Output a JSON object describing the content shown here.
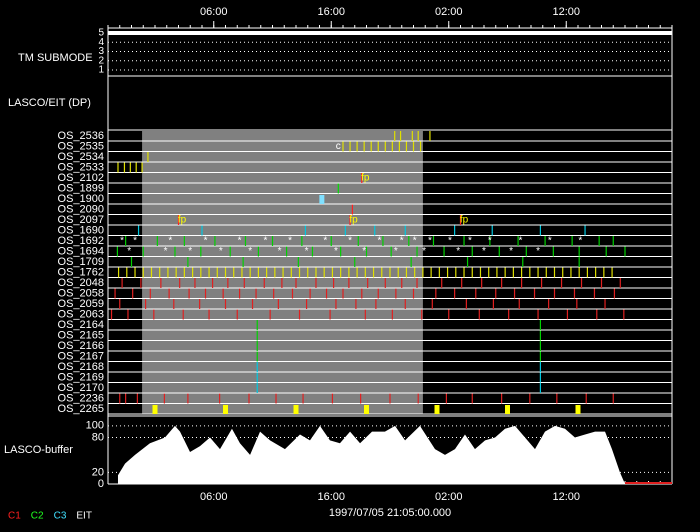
{
  "chart_data": {
    "type": "timeline",
    "xlim": [
      0,
      48
    ],
    "xticks": [
      {
        "value": 9,
        "label": "06:00"
      },
      {
        "value": 19,
        "label": "16:00"
      },
      {
        "value": 29,
        "label": "02:00"
      },
      {
        "value": 39,
        "label": "12:00"
      }
    ],
    "date_label": "1997/07/05 21:05:00.000",
    "submode": {
      "label": "TM SUBMODE",
      "levels": [
        5,
        4,
        3,
        2,
        1
      ],
      "value": 5
    },
    "section_label": "LASCO/EIT (DP)",
    "shade": [
      2.9,
      26.8
    ],
    "rows": [
      {
        "label": "OS_2536",
        "color": "#e0e000",
        "events": [
          24.4,
          24.9,
          25.9,
          26.4,
          27.4
        ]
      },
      {
        "label": "OS_2535",
        "color": "#e0e000",
        "events": [
          20.0,
          20.6,
          21.2,
          21.8,
          22.4,
          23.0,
          23.6,
          24.2,
          24.8,
          25.4,
          26.0,
          26.6
        ],
        "symbol": "c",
        "symbol_color": "#ffffff",
        "symbol_x": [
          19.6
        ]
      },
      {
        "label": "OS_2534",
        "color": "#e0e000",
        "events": [
          3.4
        ]
      },
      {
        "label": "OS_2533",
        "color": "#e0e000",
        "events": [
          0.85,
          1.4,
          1.9,
          2.4,
          2.9
        ]
      },
      {
        "label": "OS_2102",
        "color": "#ff2020",
        "events": [
          21.6
        ],
        "symbol": "fp",
        "symbol_color": "#ffff00",
        "symbol_x": [
          21.9
        ]
      },
      {
        "label": "OS_1899",
        "color": "#00e000",
        "events": [
          19.6
        ]
      },
      {
        "label": "OS_1900",
        "color": "#80e0ff",
        "mark": "block",
        "events": [
          18.2
        ]
      },
      {
        "label": "OS_2090",
        "color": "#ff2020",
        "events": [
          20.8
        ]
      },
      {
        "label": "OS_2097",
        "color": "#ff2020",
        "events": [
          6.0,
          20.6,
          30.0
        ],
        "symbol": "fp",
        "symbol_color": "#ffff00",
        "symbol_x": [
          6.3,
          20.9,
          30.3
        ]
      },
      {
        "label": "OS_1690",
        "color": "#00c8e0",
        "events": [
          2.6,
          8.0,
          16.8,
          20.2,
          22.7,
          25.3,
          29.5,
          32.7,
          36.8,
          40.6
        ]
      },
      {
        "label": "OS_1692",
        "color": "#00d000",
        "events": [
          1.5,
          4.2,
          6.5,
          9.1,
          11.7,
          14.0,
          16.5,
          19.0,
          21.3,
          23.4,
          25.6,
          27.7,
          30.3,
          32.5,
          34.9,
          37.2,
          39.5,
          41.8,
          43.0
        ],
        "symbol": "*",
        "symbol_color": "#ffffff",
        "symbol_x": [
          1.2,
          2.3,
          5.3,
          8.3,
          11.2,
          13.4,
          15.5,
          18.5,
          20.6,
          23.1,
          25.0,
          26.1,
          27.4,
          29.1,
          30.8,
          32.5,
          35.1,
          37.6,
          40.2
        ]
      },
      {
        "label": "OS_1694",
        "color": "#00d000",
        "events": [
          0.8,
          3.0,
          5.7,
          7.9,
          10.4,
          12.8,
          15.2,
          17.4,
          19.8,
          22.0,
          24.1,
          26.3,
          28.6,
          31.0,
          33.3,
          35.6,
          37.9,
          40.1,
          42.4,
          44.0
        ],
        "symbol": "*",
        "symbol_color": "#ffffff",
        "symbol_x": [
          1.8,
          4.9,
          7.0,
          9.6,
          12.1,
          14.6,
          16.9,
          19.4,
          21.8,
          24.5,
          26.9,
          29.8,
          32.0,
          34.3,
          36.6
        ]
      },
      {
        "label": "OS_1709",
        "color": "#00d000",
        "events": [
          2.0,
          6.8,
          11.5,
          16.2,
          21.0,
          25.8,
          30.6,
          35.3,
          40.1
        ]
      },
      {
        "label": "OS_1762",
        "color": "#e0e000",
        "events": [
          0.9,
          1.6,
          2.3,
          3.0,
          3.7,
          4.4,
          5.1,
          5.8,
          6.5,
          7.2,
          7.9,
          8.6,
          9.3,
          10.0,
          10.7,
          11.4,
          12.1,
          12.8,
          13.5,
          14.2,
          14.9,
          15.6,
          16.3,
          17.0,
          17.7,
          18.4,
          19.1,
          19.8,
          20.5,
          21.2,
          21.9,
          22.6,
          23.3,
          24.0,
          24.7,
          25.4,
          26.1,
          26.8,
          27.5,
          28.2,
          28.9,
          29.6,
          30.3,
          31.0,
          31.7,
          32.4,
          33.1,
          33.8,
          34.5,
          35.2,
          35.9,
          36.6,
          37.3,
          38.0,
          38.7,
          39.4,
          40.1,
          40.8,
          41.5,
          42.2,
          42.9
        ]
      },
      {
        "label": "OS_2048",
        "color": "#e02020",
        "events": [
          1.2,
          2.8,
          4.5,
          6.1,
          7.4,
          8.9,
          10.2,
          11.6,
          13.3,
          14.8,
          16.0,
          17.7,
          19.2,
          20.5,
          22.1,
          23.6,
          25.0,
          26.3,
          28.4,
          30.1,
          31.8,
          33.5,
          35.2,
          36.9,
          38.6,
          40.3,
          42.0,
          43.6
        ]
      },
      {
        "label": "OS_2058",
        "color": "#e02020",
        "events": [
          0.6,
          2.1,
          3.6,
          5.2,
          6.9,
          8.3,
          9.8,
          11.2,
          12.6,
          14.1,
          15.7,
          17.2,
          18.6,
          20.0,
          21.6,
          23.0,
          24.5,
          26.0,
          27.9,
          29.5,
          31.3,
          33.0,
          34.6,
          36.3,
          38.0,
          39.7,
          41.4,
          43.1
        ]
      },
      {
        "label": "OS_2059",
        "color": "#e02020",
        "events": [
          1.0,
          3.2,
          5.6,
          7.8,
          10.0,
          12.3,
          14.5,
          16.9,
          19.4,
          21.1,
          22.8,
          25.3,
          27.6,
          30.5,
          32.8,
          35.0,
          37.5,
          39.9,
          42.3
        ]
      },
      {
        "label": "OS_2063",
        "color": "#e02020",
        "events": [
          0.3,
          1.7,
          3.9,
          6.4,
          8.6,
          11.0,
          13.8,
          16.3,
          18.9,
          21.9,
          24.2,
          26.7,
          29.0,
          31.6,
          34.1,
          36.6,
          39.1,
          41.6,
          43.9
        ]
      },
      {
        "label": "OS_2164",
        "color": "#00d000",
        "events": [
          12.7,
          36.8
        ]
      },
      {
        "label": "OS_2165",
        "color": "#00d000",
        "events": [
          12.7,
          36.8
        ]
      },
      {
        "label": "OS_2166",
        "color": "#00d000",
        "events": [
          12.7,
          36.8
        ]
      },
      {
        "label": "OS_2167",
        "color": "#00d000",
        "events": [
          12.7,
          36.8
        ]
      },
      {
        "label": "OS_2168",
        "color": "#00c8e0",
        "events": [
          12.7,
          36.8
        ]
      },
      {
        "label": "OS_2169",
        "color": "#00c8e0",
        "events": [
          12.7,
          36.8
        ]
      },
      {
        "label": "OS_2170",
        "color": "#00c8e0",
        "events": [
          12.7,
          36.8
        ]
      },
      {
        "label": "OS_2236",
        "color": "#e02020",
        "events": [
          1.0,
          1.5,
          2.5,
          4.8,
          6.8,
          9.5,
          12.0,
          14.3,
          16.6,
          19.1,
          21.5,
          24.0,
          26.4,
          28.8,
          31.0,
          33.5,
          35.9,
          38.2,
          40.7,
          43.0
        ]
      },
      {
        "label": "OS_2265",
        "color": "#ffff00",
        "mark": "block",
        "events": [
          4.0,
          10.0,
          16.0,
          22.0,
          28.0,
          34.0,
          40.0
        ]
      }
    ],
    "buffer": {
      "label": "LASCO-buffer",
      "color": "#ffffff",
      "ylim": [
        0,
        110
      ],
      "yticks": [
        0,
        20,
        80,
        100
      ],
      "x": [
        0.85,
        1.45,
        2.3,
        3.57,
        4.85,
        5.7,
        6.13,
        6.98,
        7.83,
        8.68,
        9.53,
        10.55,
        11.23,
        12.09,
        12.94,
        13.79,
        15.06,
        16.34,
        17.19,
        18.04,
        18.89,
        19.74,
        20.6,
        21.45,
        22.47,
        23.57,
        24.43,
        25.28,
        26.55,
        27.83,
        28.68,
        29.53,
        30.38,
        31.23,
        32.09,
        32.94,
        33.79,
        34.64,
        35.49,
        36.34,
        37.19,
        38.04,
        38.89,
        39.74,
        40.6,
        41.45,
        42.3,
        42.89,
        43.57,
        44.0
      ],
      "values": [
        15,
        35,
        50,
        70,
        80,
        100,
        90,
        55,
        65,
        80,
        60,
        95,
        70,
        50,
        90,
        75,
        60,
        85,
        75,
        100,
        75,
        70,
        90,
        70,
        90,
        90,
        100,
        75,
        100,
        60,
        50,
        60,
        85,
        60,
        75,
        80,
        95,
        100,
        80,
        60,
        90,
        100,
        95,
        80,
        85,
        90,
        90,
        60,
        20,
        0
      ]
    },
    "legend": [
      {
        "name": "C1",
        "color": "#ff2020"
      },
      {
        "name": "C2",
        "color": "#20ff20"
      },
      {
        "name": "C3",
        "color": "#40e0ff"
      },
      {
        "name": "EIT",
        "color": "#ffffff"
      }
    ]
  }
}
